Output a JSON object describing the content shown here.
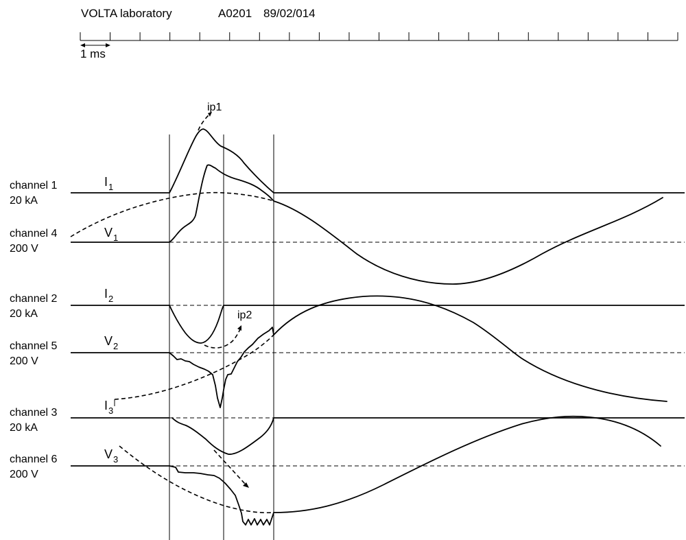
{
  "header": {
    "title": "VOLTA laboratory",
    "record_id": "A0201",
    "record_date": "89/02/014",
    "scale_label": "1 ms"
  },
  "channels": [
    {
      "name": "channel 1",
      "unit": "20 kA",
      "symbol": "I",
      "index": "1"
    },
    {
      "name": "channel 4",
      "unit": "200 V",
      "symbol": "V",
      "index": "1"
    },
    {
      "name": "channel 2",
      "unit": "20 kA",
      "symbol": "I",
      "index": "2"
    },
    {
      "name": "channel 5",
      "unit": "200 V",
      "symbol": "V",
      "index": "2"
    },
    {
      "name": "channel 3",
      "unit": "20 kA",
      "symbol": "I",
      "index": "3"
    },
    {
      "name": "channel 6",
      "unit": "200 V",
      "symbol": "V",
      "index": "3"
    }
  ],
  "annotations": {
    "peak1": "ip1",
    "peak2": "ip2"
  }
}
